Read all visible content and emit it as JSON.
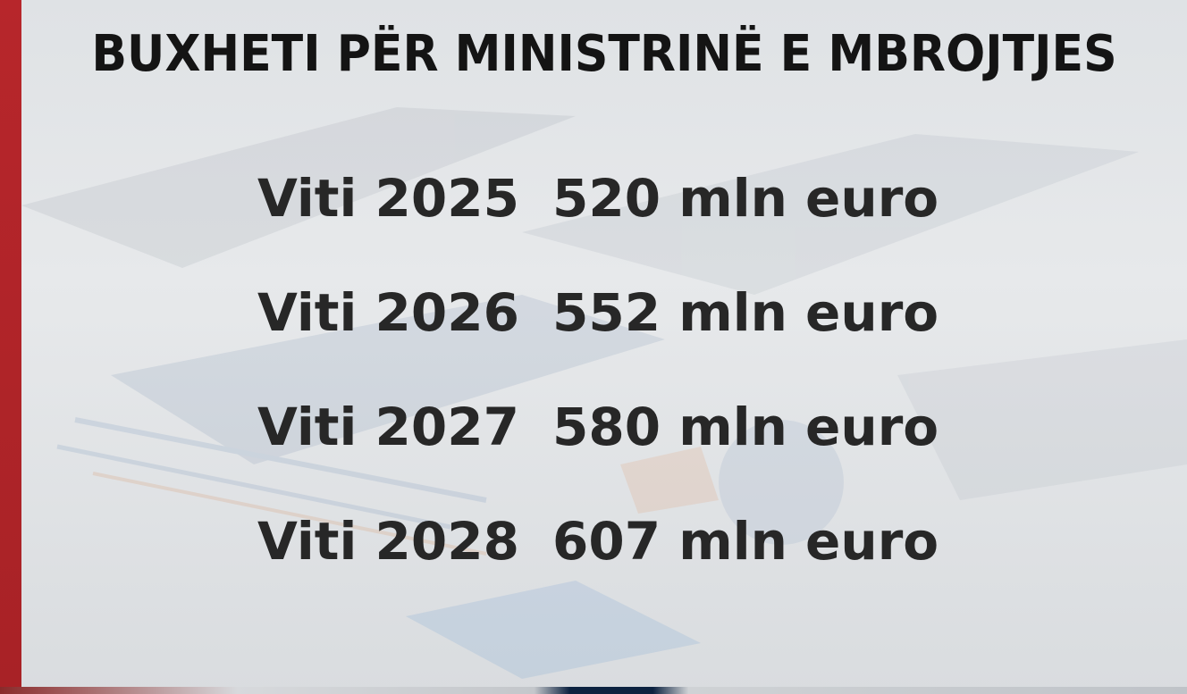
{
  "title": "BUXHETI PËR MINISTRINË E MBROJTJES",
  "rows": [
    {
      "year": "Viti 2025",
      "amount": "520 mln euro"
    },
    {
      "year": "Viti 2026",
      "amount": "552 mln euro"
    },
    {
      "year": "Viti 2027",
      "amount": "580 mln euro"
    },
    {
      "year": "Viti 2028",
      "amount": "607 mln euro"
    }
  ],
  "colors": {
    "accent_bar": "#b7262b",
    "background": "#e3e5e8",
    "text": "#272727"
  }
}
